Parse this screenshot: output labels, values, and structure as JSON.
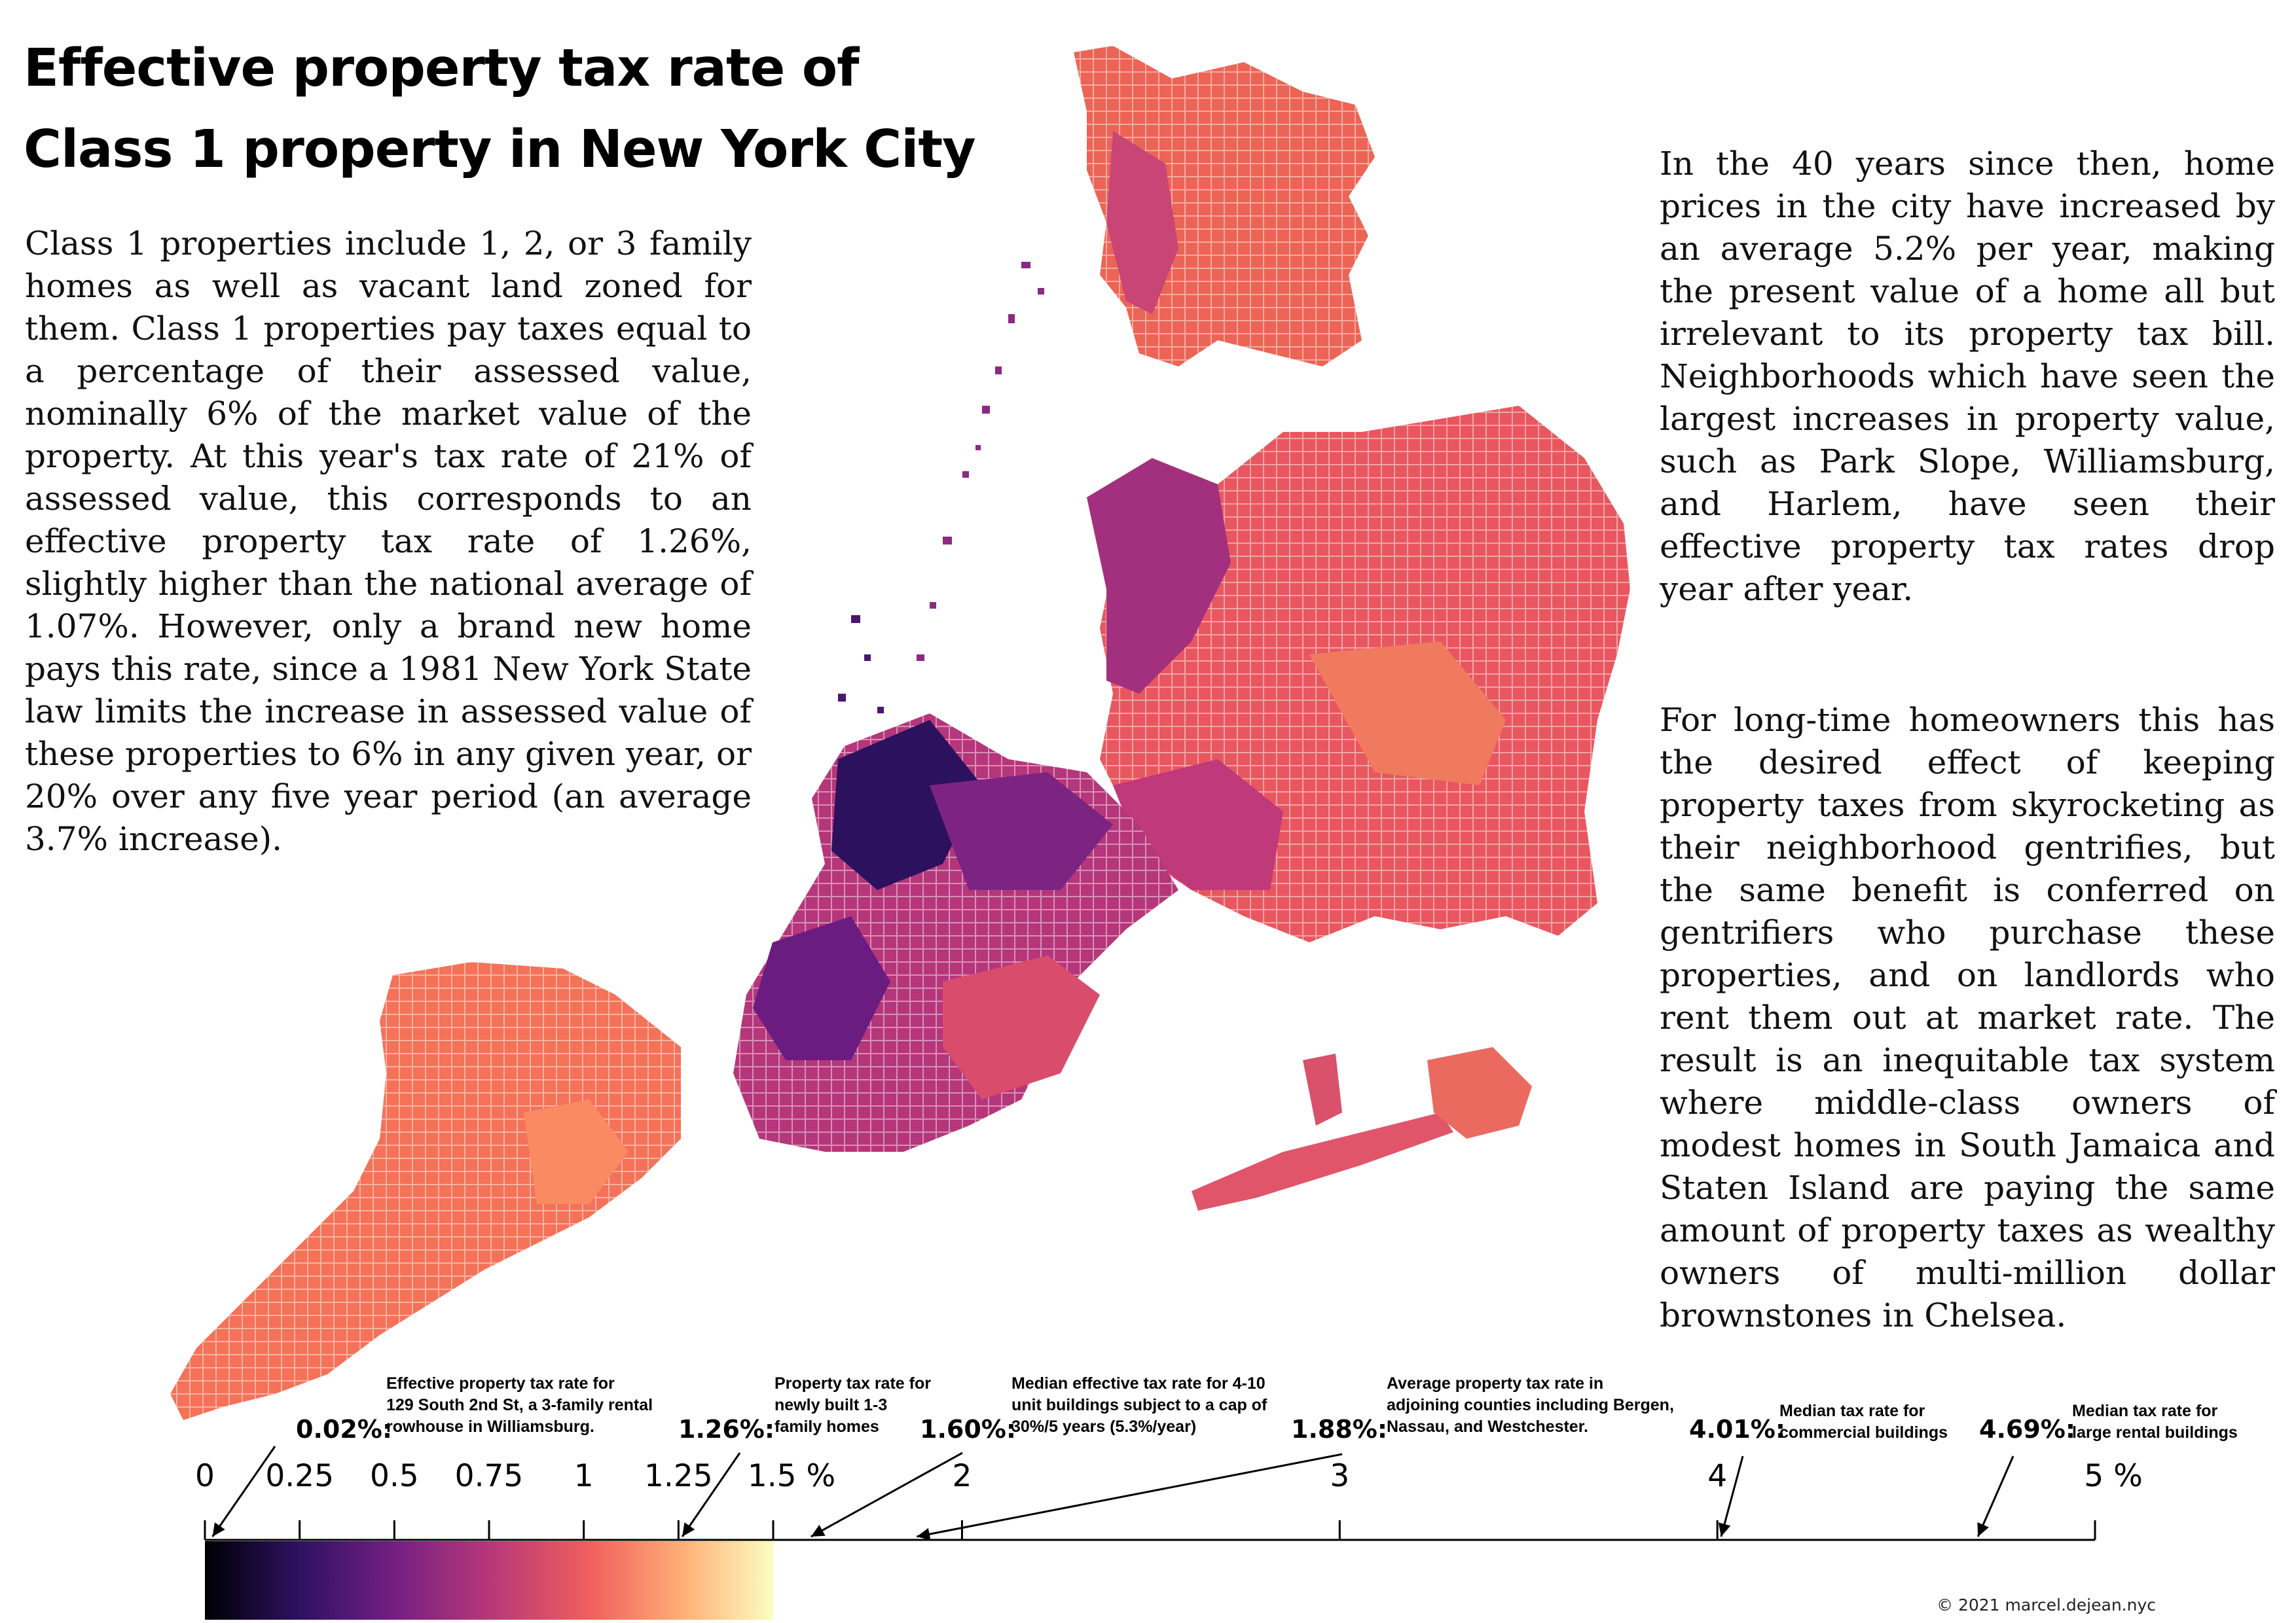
{
  "title_lines": [
    "Effective property tax rate of",
    "Class 1 property in New York City"
  ],
  "intro": "Class 1 properties include 1, 2, or 3 family homes as well as vacant land zoned for them. Class 1 properties pay taxes equal to a percentage of their assessed value, nominally 6% of the market value of the property. At this year's tax rate of 21% of assessed value, this corresponds to an effective property tax rate of 1.26%, slightly higher than the national average of 1.07%. However, only a brand new home pays this rate, since a 1981 New York State law limits the increase in assessed value of these properties to 6% in any given year, or 20% over any five year period (an average 3.7% increase).",
  "paragraph_2": "In the 40 years since then, home prices in the city have increased by an average 5.2% per year, making the present value of a home all but irrelevant to its property tax bill. Neighborhoods which have seen the largest increases in property value, such as Park Slope, Williamsburg, and Harlem, have seen their effective property tax rates drop year after year.",
  "paragraph_3": "For long-time homeowners this has the desired effect of keeping property taxes from skyrocketing as their neighborhood gentrifies, but the same benefit is conferred on gentrifiers who purchase these properties, and on landlords who rent them out at market rate. The result is an inequitable tax system where middle-class owners of modest homes in South Jamaica and Staten Island are paying the same amount of property taxes as wealthy owners of multi-million dollar brownstones in Chelsea.",
  "scale": {
    "ticks": [
      {
        "value": 0,
        "label": "0"
      },
      {
        "value": 0.25,
        "label": "0.25"
      },
      {
        "value": 0.5,
        "label": "0.5"
      },
      {
        "value": 0.75,
        "label": "0.75"
      },
      {
        "value": 1,
        "label": "1"
      },
      {
        "value": 1.25,
        "label": "1.25"
      },
      {
        "value": 1.5,
        "label": "1.5 %"
      },
      {
        "value": 2,
        "label": "2"
      },
      {
        "value": 3,
        "label": "3"
      },
      {
        "value": 4,
        "label": "4"
      },
      {
        "value": 5,
        "label": "5 %"
      }
    ],
    "colorbar_range": [
      0,
      1.5
    ],
    "colormap": [
      "#000004",
      "#2c115f",
      "#721f81",
      "#b73779",
      "#f1605d",
      "#feaf77",
      "#fcfdbf"
    ]
  },
  "annotations": [
    {
      "value": 0.02,
      "pct": "0.02%:",
      "note": "Effective property tax rate for\n129 South 2nd St, a 3-family rental\nrowhouse in Williamsburg."
    },
    {
      "value": 1.26,
      "pct": "1.26%:",
      "note": "Property tax rate for\nnewly built 1-3\nfamily homes"
    },
    {
      "value": 1.6,
      "pct": "1.60%:",
      "note": "Median effective tax rate for 4-10\nunit buildings subject to a cap of\n30%/5 years (5.3%/year)"
    },
    {
      "value": 1.88,
      "pct": "1.88%:",
      "note": "Average property tax rate in\nadjoining counties including Bergen,\nNassau, and Westchester."
    },
    {
      "value": 4.01,
      "pct": "4.01%:",
      "note": "Median tax rate for\ncommercial buildings"
    },
    {
      "value": 4.69,
      "pct": "4.69%:",
      "note": "Median tax rate for\nlarge rental buildings"
    }
  ],
  "credit": "© 2021 marcel.dejean.nyc"
}
